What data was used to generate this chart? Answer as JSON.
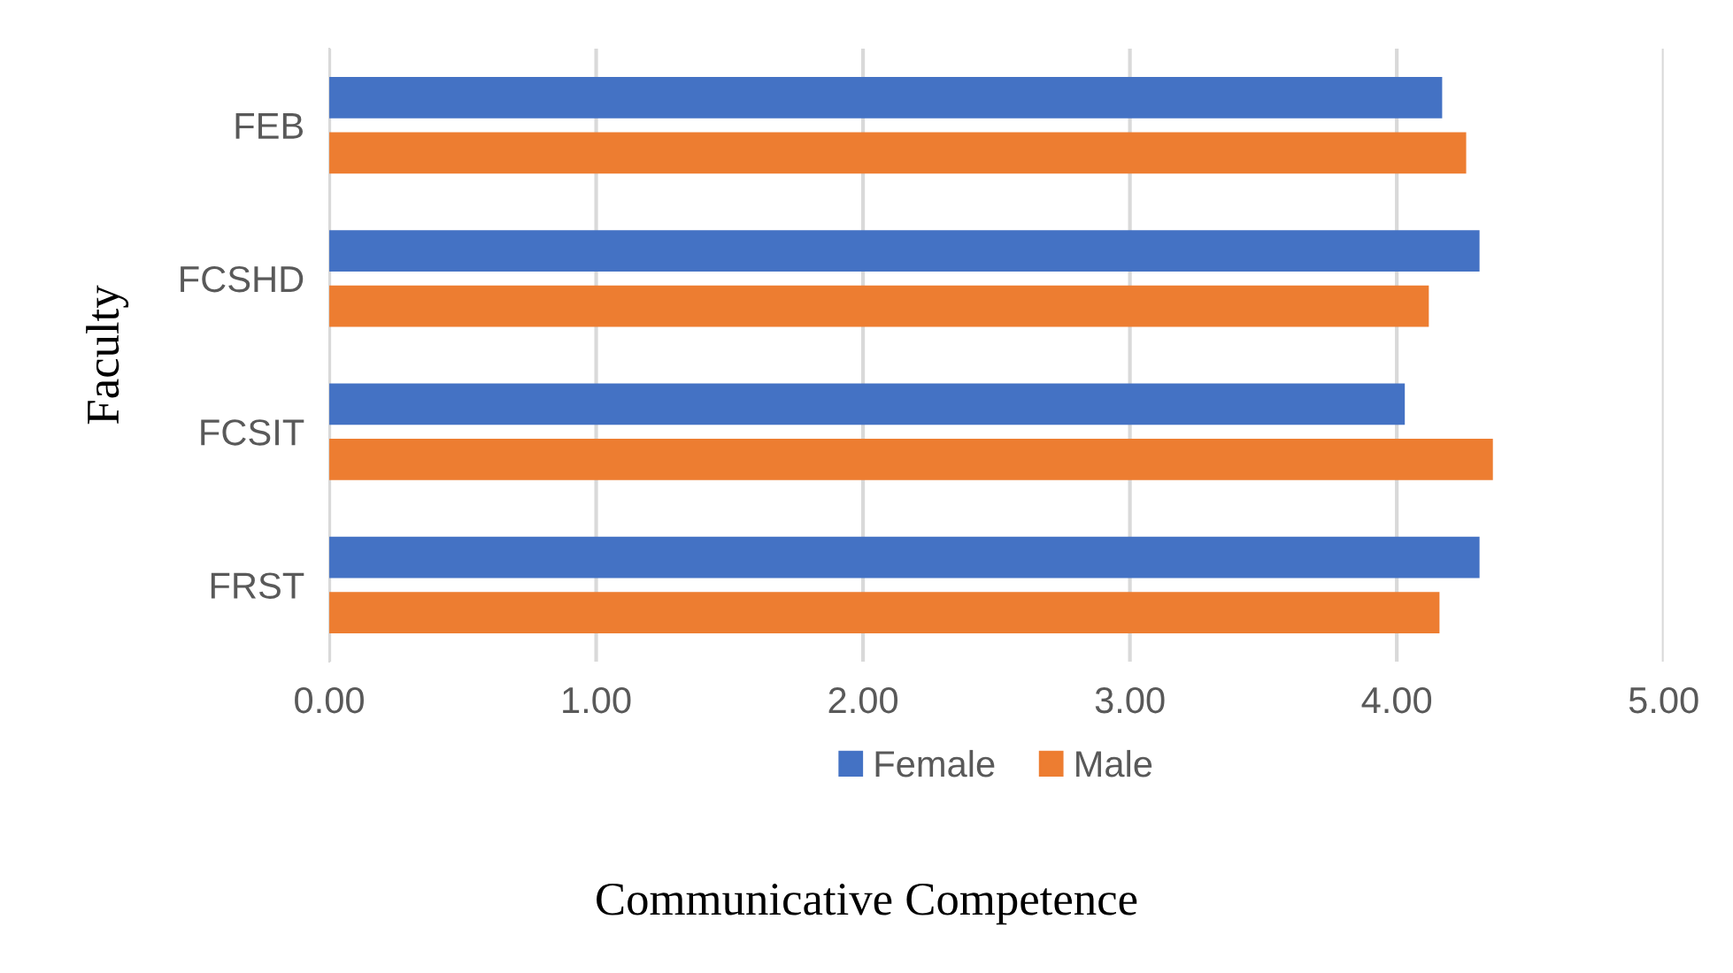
{
  "chart_data": {
    "type": "bar",
    "orientation": "horizontal",
    "xlabel": "Communicative Competence",
    "ylabel": "Faculty",
    "categories": [
      "FEB",
      "FCSHD",
      "FCSIT",
      "FRST"
    ],
    "series": [
      {
        "name": "Female",
        "color": "#4472c4",
        "values": [
          4.17,
          4.31,
          4.03,
          4.31
        ]
      },
      {
        "name": "Male",
        "color": "#ed7d31",
        "values": [
          4.26,
          4.12,
          4.36,
          4.16
        ]
      }
    ],
    "xlim": [
      0,
      5
    ],
    "xticks": [
      {
        "value": 0,
        "label": "0.00"
      },
      {
        "value": 1,
        "label": "1.00"
      },
      {
        "value": 2,
        "label": "2.00"
      },
      {
        "value": 3,
        "label": "3.00"
      },
      {
        "value": 4,
        "label": "4.00"
      },
      {
        "value": 5,
        "label": "5.00"
      }
    ],
    "grid": "x",
    "legend": "bottom"
  }
}
